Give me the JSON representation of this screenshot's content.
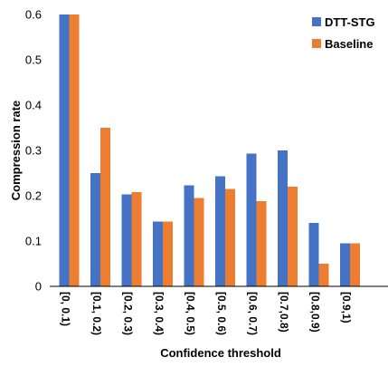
{
  "chart_data": {
    "type": "bar",
    "xlabel": "Confidence threshold",
    "ylabel": "Compression rate",
    "ylim": [
      0,
      0.6
    ],
    "yticks": [
      "0",
      "0.1",
      "0.2",
      "0.3",
      "0.4",
      "0.5",
      "0.6"
    ],
    "grid": false,
    "legend_position": "top-right",
    "categories": [
      "[0, 0.1)",
      "[0.1, 0.2)",
      "[0.2, 0.3)",
      "[0.3, 0.4)",
      "[0.4, 0.5)",
      "[0.5, 0.6)",
      "[0.6, 0.7)",
      "[0.7,0.8)",
      "[0.8,0.9)",
      "[0.9,1)"
    ],
    "series": [
      {
        "name": "DTT-STG",
        "color": "#4472C4",
        "values": [
          0.6,
          0.25,
          0.203,
          0.143,
          0.223,
          0.243,
          0.293,
          0.3,
          0.14,
          0.095
        ]
      },
      {
        "name": "Baseline",
        "color": "#ED7D31",
        "values": [
          0.6,
          0.35,
          0.208,
          0.143,
          0.195,
          0.215,
          0.188,
          0.22,
          0.05,
          0.095
        ]
      }
    ]
  }
}
